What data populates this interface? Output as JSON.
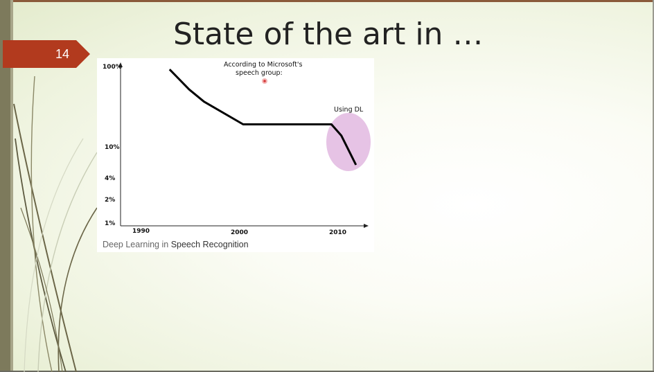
{
  "slide": {
    "title": "State of the art in …",
    "page_number": "14",
    "caption_part1": "Deep Learning in ",
    "caption_part2": "Speech Recognition",
    "colors": {
      "badge": "#b23a1e",
      "left_bar": "#7d7a5c",
      "highlight": "#e2b8e0",
      "line": "#000000"
    }
  },
  "chart_data": {
    "type": "line",
    "title": "",
    "xlabel": "",
    "ylabel": "",
    "x_ticks": [
      "1990",
      "2000",
      "2010"
    ],
    "y_ticks": [
      "100%",
      "10%",
      "4%",
      "2%",
      "1%"
    ],
    "y_scale": "log",
    "xlim": [
      1988,
      2013
    ],
    "ylim": [
      1,
      100
    ],
    "series": [
      {
        "x": [
          1993,
          1995,
          1996.5,
          2000.5,
          2009.5,
          2010.5,
          2012
        ],
        "y": [
          90,
          50,
          35,
          18,
          18,
          13,
          5.5
        ]
      }
    ],
    "annotations": [
      {
        "text_line1": "According to Microsoft's",
        "text_line2": "speech group:"
      },
      {
        "text": "Using DL"
      }
    ],
    "grid": false
  }
}
